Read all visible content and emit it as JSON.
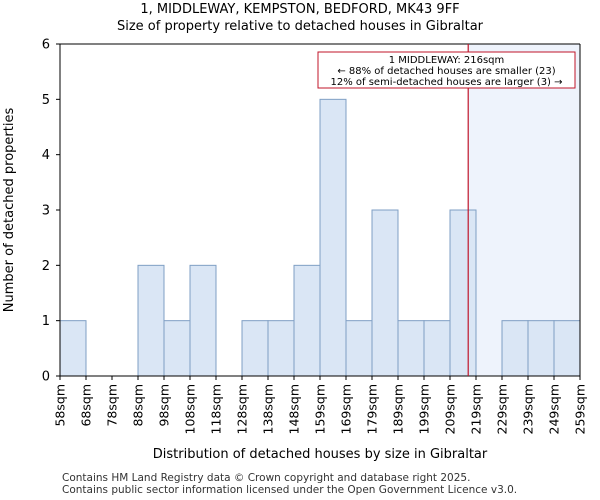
{
  "title_line1": "1, MIDDLEWAY, KEMPSTON, BEDFORD, MK43 9FF",
  "title_line2": "Size of property relative to detached houses in Gibraltar",
  "footer_line1": "Contains HM Land Registry data © Crown copyright and database right 2025.",
  "footer_line2": "Contains public sector information licensed under the Open Government Licence v3.0.",
  "colors": {
    "bar_fill": "#dae6f5",
    "bar_stroke": "#7f9fc4",
    "highlight_region": "#eef3fc",
    "marker_line": "#c0152a",
    "annotation_border": "#c0152a"
  },
  "chart_data": {
    "type": "bar",
    "xlabel": "Distribution of detached houses by size in Gibraltar",
    "ylabel": "Number of detached properties",
    "x_unit": "sqm",
    "bin_edges": [
      58,
      68,
      78,
      88,
      98,
      108,
      118,
      128,
      138,
      148,
      159,
      169,
      179,
      189,
      199,
      209,
      219,
      229,
      239,
      249,
      259
    ],
    "tick_labels": [
      "58sqm",
      "68sqm",
      "78sqm",
      "88sqm",
      "98sqm",
      "108sqm",
      "118sqm",
      "128sqm",
      "138sqm",
      "148sqm",
      "159sqm",
      "169sqm",
      "179sqm",
      "189sqm",
      "199sqm",
      "209sqm",
      "219sqm",
      "229sqm",
      "239sqm",
      "249sqm",
      "259sqm"
    ],
    "values": [
      1,
      0,
      0,
      2,
      1,
      2,
      0,
      1,
      1,
      2,
      5,
      1,
      3,
      1,
      1,
      3,
      0,
      1,
      1,
      1
    ],
    "ylim": [
      0,
      6
    ],
    "yticks": [
      0,
      1,
      2,
      3,
      4,
      5,
      6
    ],
    "grid": false,
    "marker_value": 216,
    "annotation": {
      "line1": "1 MIDDLEWAY: 216sqm",
      "line2": "← 88% of detached houses are smaller (23)",
      "line3": "12% of semi-detached houses are larger (3) →"
    }
  }
}
